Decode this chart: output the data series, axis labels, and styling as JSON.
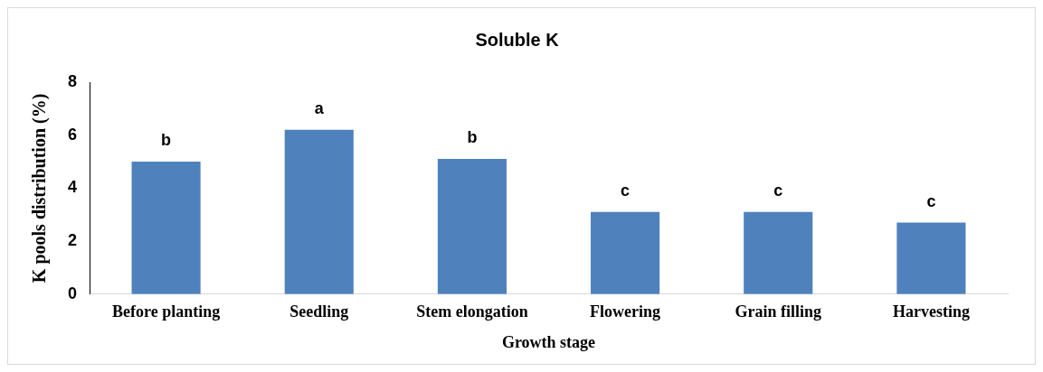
{
  "chart_data": {
    "type": "bar",
    "title": "Soluble K",
    "xlabel": "Growth stage",
    "ylabel": "K pools distribution (%)",
    "categories": [
      "Before planting",
      "Seedling",
      "Stem elongation",
      "Flowering",
      "Grain filling",
      "Harvesting"
    ],
    "values": [
      5.0,
      6.2,
      5.1,
      3.1,
      3.1,
      2.7
    ],
    "value_labels": [
      "b",
      "a",
      "b",
      "c",
      "c",
      "c"
    ],
    "color": "#4f81bd",
    "ylim": [
      0,
      8
    ],
    "yticks": [
      0,
      2,
      4,
      6,
      8
    ],
    "grid": false,
    "legend": false
  }
}
